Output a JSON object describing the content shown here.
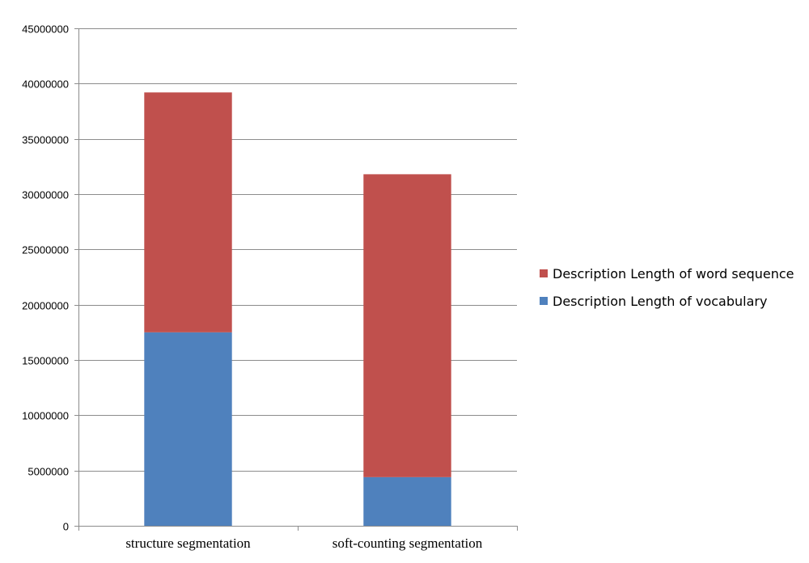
{
  "chart_data": {
    "type": "bar",
    "stacked": true,
    "categories": [
      "structure segmentation",
      "soft-counting segmentation"
    ],
    "series": [
      {
        "name": "Description Length of vocabulary",
        "color": "#4f81bd",
        "values": [
          17500000,
          4400000
        ]
      },
      {
        "name": "Description Length of word sequence",
        "color": "#c0504d",
        "values": [
          21700000,
          27400000
        ]
      }
    ],
    "ylim": [
      0,
      45000000
    ],
    "yticks": [
      0,
      5000000,
      10000000,
      15000000,
      20000000,
      25000000,
      30000000,
      35000000,
      40000000,
      45000000
    ],
    "grid": true,
    "legend_position": "right",
    "title": "",
    "xlabel": "",
    "ylabel": ""
  }
}
